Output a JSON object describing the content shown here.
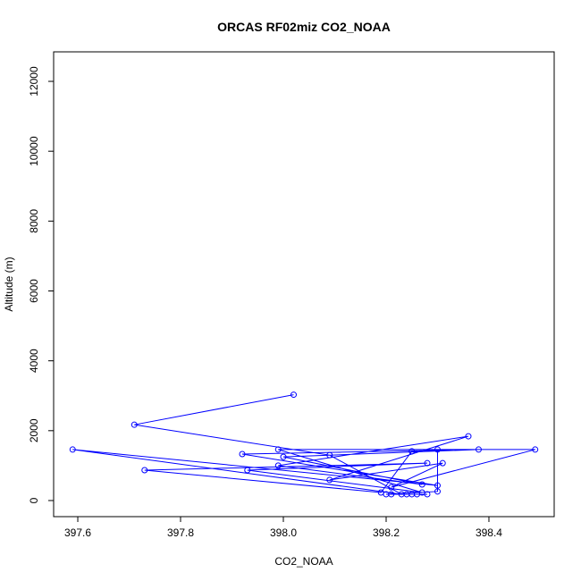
{
  "chart_data": {
    "type": "line",
    "title": "ORCAS RF02miz CO2_NOAA",
    "x_label": "CO2_NOAA",
    "y_label": "Altitude (m)",
    "x": [
      398.02,
      397.71,
      398.09,
      398.23,
      397.59,
      398.3,
      397.92,
      398.38,
      398.0,
      398.27,
      397.99,
      398.36,
      398.09,
      398.31,
      398.21,
      398.49,
      397.99,
      398.27,
      397.93,
      398.28,
      397.73,
      398.19,
      398.25,
      398.3,
      398.3,
      398.2,
      398.21,
      398.24,
      398.25,
      398.26,
      398.28
    ],
    "values": [
      3030,
      2170,
      1300,
      180,
      1460,
      430,
      1330,
      1460,
      1250,
      460,
      1000,
      1840,
      590,
      1070,
      380,
      1460,
      1460,
      230,
      870,
      1070,
      870,
      230,
      1410,
      1460,
      260,
      180,
      180,
      180,
      180,
      180,
      180
    ],
    "color": "#0000ff",
    "xlim": [
      397.553,
      398.527
    ],
    "ylim": [
      -461,
      12845
    ],
    "xticks": [
      397.6,
      397.8,
      {
        "value": 398,
        "label": "398.0"
      },
      398.2,
      398.4
    ],
    "yticks": [
      0,
      2000,
      4000,
      6000,
      8000,
      10000,
      12000
    ]
  }
}
